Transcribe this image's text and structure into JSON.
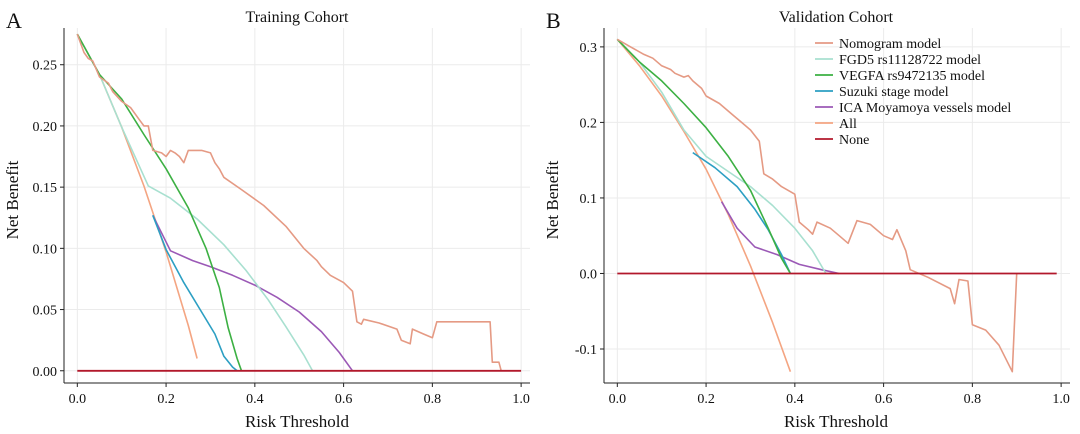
{
  "chart_data": [
    {
      "type": "line",
      "panel_letter": "A",
      "title": "Training Cohort",
      "xlabel": "Risk Threshold",
      "ylabel": "Net Benefit",
      "xlim": [
        -0.03,
        1.02
      ],
      "ylim": [
        -0.01,
        0.28
      ],
      "x_ticks": [
        0.0,
        0.2,
        0.4,
        0.6,
        0.8,
        1.0
      ],
      "x_tick_labels": [
        "0.0",
        "0.2",
        "0.4",
        "0.6",
        "0.8",
        "1.0"
      ],
      "y_ticks": [
        0.0,
        0.05,
        0.1,
        0.15,
        0.2,
        0.25
      ],
      "y_tick_labels": [
        "0.00",
        "0.05",
        "0.10",
        "0.15",
        "0.20",
        "0.25"
      ],
      "grid": true,
      "series": [
        {
          "key": "all",
          "color": "#f4a582",
          "points": [
            [
              0,
              0.275
            ],
            [
              0.05,
              0.242
            ],
            [
              0.1,
              0.199
            ],
            [
              0.15,
              0.151
            ],
            [
              0.2,
              0.097
            ],
            [
              0.25,
              0.037
            ],
            [
              0.27,
              0.01
            ]
          ]
        },
        {
          "key": "ica",
          "color": "#9b59b6",
          "points": [
            [
              0.17,
              0.127
            ],
            [
              0.21,
              0.098
            ],
            [
              0.26,
              0.09
            ],
            [
              0.3,
              0.085
            ],
            [
              0.35,
              0.078
            ],
            [
              0.4,
              0.07
            ],
            [
              0.45,
              0.06
            ],
            [
              0.5,
              0.048
            ],
            [
              0.55,
              0.032
            ],
            [
              0.59,
              0.015
            ],
            [
              0.62,
              0.0
            ]
          ]
        },
        {
          "key": "suzuki",
          "color": "#2c9fc3",
          "points": [
            [
              0.17,
              0.127
            ],
            [
              0.2,
              0.099
            ],
            [
              0.24,
              0.072
            ],
            [
              0.28,
              0.048
            ],
            [
              0.31,
              0.03
            ],
            [
              0.33,
              0.012
            ],
            [
              0.35,
              0.003
            ],
            [
              0.36,
              0.0
            ]
          ]
        },
        {
          "key": "fgd5",
          "color": "#a8e0d0",
          "points": [
            [
              0,
              0.275
            ],
            [
              0.05,
              0.242
            ],
            [
              0.1,
              0.199
            ],
            [
              0.16,
              0.151
            ],
            [
              0.21,
              0.141
            ],
            [
              0.27,
              0.124
            ],
            [
              0.33,
              0.103
            ],
            [
              0.38,
              0.082
            ],
            [
              0.43,
              0.058
            ],
            [
              0.47,
              0.036
            ],
            [
              0.51,
              0.013
            ],
            [
              0.53,
              0.0
            ]
          ]
        },
        {
          "key": "vegfa",
          "color": "#3cb043",
          "points": [
            [
              0,
              0.275
            ],
            [
              0.05,
              0.242
            ],
            [
              0.1,
              0.222
            ],
            [
              0.15,
              0.193
            ],
            [
              0.2,
              0.165
            ],
            [
              0.25,
              0.133
            ],
            [
              0.29,
              0.1
            ],
            [
              0.32,
              0.068
            ],
            [
              0.34,
              0.035
            ],
            [
              0.36,
              0.01
            ],
            [
              0.37,
              0.0
            ]
          ]
        },
        {
          "key": "nomogram",
          "color": "#e59a84",
          "points": [
            [
              0,
              0.275
            ],
            [
              0.015,
              0.26
            ],
            [
              0.025,
              0.255
            ],
            [
              0.035,
              0.253
            ],
            [
              0.05,
              0.24
            ],
            [
              0.07,
              0.235
            ],
            [
              0.08,
              0.228
            ],
            [
              0.1,
              0.22
            ],
            [
              0.12,
              0.215
            ],
            [
              0.14,
              0.205
            ],
            [
              0.15,
              0.2
            ],
            [
              0.16,
              0.2
            ],
            [
              0.17,
              0.18
            ],
            [
              0.19,
              0.178
            ],
            [
              0.2,
              0.175
            ],
            [
              0.21,
              0.18
            ],
            [
              0.22,
              0.178
            ],
            [
              0.23,
              0.175
            ],
            [
              0.24,
              0.17
            ],
            [
              0.25,
              0.18
            ],
            [
              0.28,
              0.18
            ],
            [
              0.3,
              0.178
            ],
            [
              0.31,
              0.17
            ],
            [
              0.32,
              0.165
            ],
            [
              0.33,
              0.158
            ],
            [
              0.37,
              0.148
            ],
            [
              0.42,
              0.135
            ],
            [
              0.47,
              0.118
            ],
            [
              0.51,
              0.1
            ],
            [
              0.54,
              0.09
            ],
            [
              0.55,
              0.085
            ],
            [
              0.57,
              0.078
            ],
            [
              0.6,
              0.072
            ],
            [
              0.62,
              0.065
            ],
            [
              0.63,
              0.04
            ],
            [
              0.64,
              0.038
            ],
            [
              0.645,
              0.042
            ],
            [
              0.68,
              0.039
            ],
            [
              0.72,
              0.034
            ],
            [
              0.73,
              0.025
            ],
            [
              0.75,
              0.022
            ],
            [
              0.755,
              0.034
            ],
            [
              0.78,
              0.03
            ],
            [
              0.8,
              0.027
            ],
            [
              0.81,
              0.04
            ],
            [
              0.93,
              0.04
            ],
            [
              0.935,
              0.007
            ],
            [
              0.95,
              0.007
            ],
            [
              0.955,
              0.0
            ]
          ]
        },
        {
          "key": "none",
          "color": "#b2182b",
          "points": [
            [
              0,
              0
            ],
            [
              1,
              0
            ]
          ]
        }
      ]
    },
    {
      "type": "line",
      "panel_letter": "B",
      "title": "Validation Cohort",
      "xlabel": "Risk Threshold",
      "ylabel": "Net Benefit",
      "xlim": [
        -0.03,
        1.02
      ],
      "ylim": [
        -0.145,
        0.325
      ],
      "x_ticks": [
        0.0,
        0.2,
        0.4,
        0.6,
        0.8,
        1.0
      ],
      "x_tick_labels": [
        "0.0",
        "0.2",
        "0.4",
        "0.6",
        "0.8",
        "1.0"
      ],
      "y_ticks": [
        -0.1,
        0.0,
        0.1,
        0.2,
        0.3
      ],
      "y_tick_labels": [
        "-0.1",
        "0.0",
        "0.1",
        "0.2",
        "0.3"
      ],
      "grid": true,
      "legend_position": "top-right",
      "legend": [
        {
          "key": "nomogram",
          "label": "Nomogram model"
        },
        {
          "key": "fgd5",
          "label": "FGD5 rs11128722 model"
        },
        {
          "key": "vegfa",
          "label": "VEGFA rs9472135 model"
        },
        {
          "key": "suzuki",
          "label": "Suzuki stage model"
        },
        {
          "key": "ica",
          "label": "ICA Moyamoya vessels model"
        },
        {
          "key": "all",
          "label": "All"
        },
        {
          "key": "none",
          "label": "None"
        }
      ],
      "series": [
        {
          "key": "all",
          "color": "#f4a582",
          "points": [
            [
              0,
              0.31
            ],
            [
              0.05,
              0.275
            ],
            [
              0.1,
              0.235
            ],
            [
              0.15,
              0.188
            ],
            [
              0.2,
              0.138
            ],
            [
              0.25,
              0.078
            ],
            [
              0.3,
              0.01
            ],
            [
              0.35,
              -0.065
            ],
            [
              0.39,
              -0.13
            ]
          ]
        },
        {
          "key": "ica",
          "color": "#9b59b6",
          "points": [
            [
              0.235,
              0.095
            ],
            [
              0.27,
              0.06
            ],
            [
              0.31,
              0.035
            ],
            [
              0.36,
              0.025
            ],
            [
              0.41,
              0.012
            ],
            [
              0.46,
              0.005
            ],
            [
              0.5,
              0.0
            ]
          ]
        },
        {
          "key": "suzuki",
          "color": "#2c9fc3",
          "points": [
            [
              0.17,
              0.16
            ],
            [
              0.22,
              0.14
            ],
            [
              0.27,
              0.115
            ],
            [
              0.31,
              0.085
            ],
            [
              0.34,
              0.058
            ],
            [
              0.37,
              0.025
            ],
            [
              0.39,
              0.0
            ]
          ]
        },
        {
          "key": "fgd5",
          "color": "#a8e0d0",
          "points": [
            [
              0,
              0.31
            ],
            [
              0.05,
              0.28
            ],
            [
              0.1,
              0.24
            ],
            [
              0.15,
              0.19
            ],
            [
              0.2,
              0.155
            ],
            [
              0.25,
              0.135
            ],
            [
              0.3,
              0.115
            ],
            [
              0.35,
              0.09
            ],
            [
              0.4,
              0.06
            ],
            [
              0.44,
              0.03
            ],
            [
              0.47,
              0.0
            ]
          ]
        },
        {
          "key": "vegfa",
          "color": "#3cb043",
          "points": [
            [
              0,
              0.31
            ],
            [
              0.05,
              0.28
            ],
            [
              0.1,
              0.255
            ],
            [
              0.15,
              0.225
            ],
            [
              0.2,
              0.193
            ],
            [
              0.25,
              0.155
            ],
            [
              0.3,
              0.11
            ],
            [
              0.34,
              0.06
            ],
            [
              0.37,
              0.02
            ],
            [
              0.39,
              0.0
            ]
          ]
        },
        {
          "key": "nomogram",
          "color": "#e59a84",
          "points": [
            [
              0,
              0.31
            ],
            [
              0.03,
              0.3
            ],
            [
              0.06,
              0.29
            ],
            [
              0.08,
              0.285
            ],
            [
              0.1,
              0.275
            ],
            [
              0.12,
              0.27
            ],
            [
              0.13,
              0.265
            ],
            [
              0.15,
              0.26
            ],
            [
              0.16,
              0.262
            ],
            [
              0.17,
              0.255
            ],
            [
              0.18,
              0.25
            ],
            [
              0.19,
              0.245
            ],
            [
              0.2,
              0.235
            ],
            [
              0.23,
              0.225
            ],
            [
              0.26,
              0.21
            ],
            [
              0.28,
              0.2
            ],
            [
              0.3,
              0.19
            ],
            [
              0.32,
              0.175
            ],
            [
              0.33,
              0.132
            ],
            [
              0.35,
              0.125
            ],
            [
              0.37,
              0.115
            ],
            [
              0.4,
              0.105
            ],
            [
              0.41,
              0.068
            ],
            [
              0.43,
              0.058
            ],
            [
              0.44,
              0.052
            ],
            [
              0.45,
              0.068
            ],
            [
              0.48,
              0.06
            ],
            [
              0.5,
              0.05
            ],
            [
              0.52,
              0.04
            ],
            [
              0.54,
              0.07
            ],
            [
              0.57,
              0.065
            ],
            [
              0.6,
              0.05
            ],
            [
              0.62,
              0.045
            ],
            [
              0.63,
              0.058
            ],
            [
              0.65,
              0.03
            ],
            [
              0.66,
              0.005
            ],
            [
              0.7,
              -0.005
            ],
            [
              0.75,
              -0.02
            ],
            [
              0.76,
              -0.04
            ],
            [
              0.77,
              -0.008
            ],
            [
              0.79,
              -0.01
            ],
            [
              0.8,
              -0.068
            ],
            [
              0.83,
              -0.075
            ],
            [
              0.86,
              -0.095
            ],
            [
              0.89,
              -0.13
            ],
            [
              0.9,
              0.0
            ]
          ]
        },
        {
          "key": "none",
          "color": "#b2182b",
          "points": [
            [
              0,
              0
            ],
            [
              0.99,
              0
            ]
          ]
        }
      ]
    }
  ]
}
